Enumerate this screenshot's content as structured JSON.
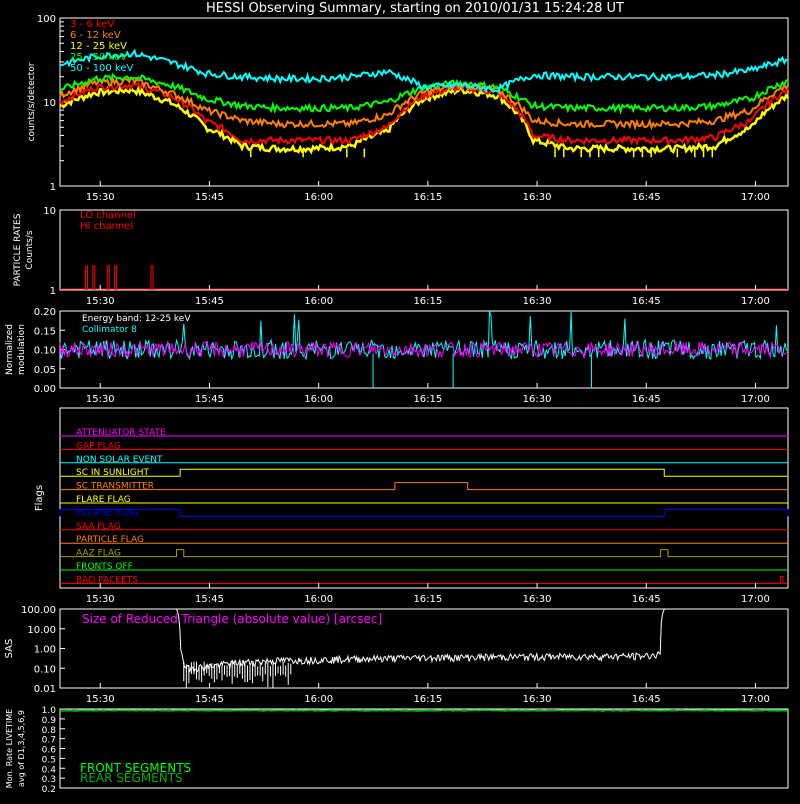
{
  "title": "HESSI Observing Summary, starting on 2010/01/31 15:24:28 UT",
  "colors": {
    "bg": "#000000",
    "axis": "#ffffff",
    "e1": "#ff0000",
    "e2": "#ff7f00",
    "e3": "#ffff00",
    "e4": "#00ff00",
    "e5": "#00ffff",
    "magenta": "#ff00ff",
    "cyan": "#00ffff",
    "green": "#00ff00",
    "darkgreen": "#00b000"
  },
  "time_ticks": [
    "15:30",
    "15:45",
    "16:00",
    "16:15",
    "16:30",
    "16:45",
    "17:00"
  ],
  "chart_data": [
    {
      "type": "line",
      "name": "count-rates",
      "ylabel": "counts/s/detector",
      "ylog": true,
      "ytick_labels": [
        "1",
        "10",
        "100"
      ],
      "ylim": [
        1,
        100
      ],
      "legend_placement": "top-left",
      "x_unit": "minutes since 15:24:28 UT",
      "series": [
        {
          "name": "3 - 6 keV",
          "color": "#ff0000",
          "x": [
            0,
            5,
            10,
            15,
            20,
            25,
            30,
            35,
            40,
            45,
            50,
            55,
            60,
            65,
            70,
            75,
            80,
            85,
            90,
            95,
            100
          ],
          "values": [
            10,
            15,
            16,
            12,
            6,
            3.5,
            3.5,
            3.5,
            3.5,
            5,
            12,
            15,
            13,
            4,
            3.5,
            3.5,
            3.5,
            3.5,
            3.8,
            6,
            14
          ]
        },
        {
          "name": "6 - 12 keV",
          "color": "#ff7f00",
          "x": [
            0,
            5,
            10,
            15,
            20,
            25,
            30,
            35,
            40,
            45,
            50,
            55,
            60,
            65,
            70,
            75,
            80,
            85,
            90,
            95,
            100
          ],
          "values": [
            12,
            17,
            18,
            13,
            8,
            6,
            5.5,
            5.5,
            5.5,
            7,
            13,
            16,
            14,
            6,
            5.5,
            5.5,
            5.5,
            5.5,
            6,
            8,
            16
          ]
        },
        {
          "name": "12 - 25 keV",
          "color": "#ffff00",
          "x": [
            0,
            5,
            10,
            15,
            20,
            25,
            30,
            35,
            40,
            45,
            50,
            55,
            60,
            65,
            70,
            75,
            80,
            85,
            90,
            95,
            100
          ],
          "values": [
            9,
            13,
            14,
            10,
            5,
            3,
            2.8,
            2.8,
            3,
            4.5,
            11,
            14,
            12,
            3.5,
            2.8,
            2.8,
            2.8,
            2.8,
            3,
            5,
            12
          ]
        },
        {
          "name": "25 - 50 keV",
          "color": "#00ff00",
          "x": [
            0,
            5,
            10,
            15,
            20,
            25,
            30,
            35,
            40,
            45,
            50,
            55,
            60,
            65,
            70,
            75,
            80,
            85,
            90,
            95,
            100
          ],
          "values": [
            14,
            19,
            20,
            16,
            11,
            9,
            8.5,
            8.5,
            8.5,
            10,
            15,
            17,
            15,
            9,
            8.5,
            8.5,
            8.5,
            8.5,
            9,
            11,
            18
          ]
        },
        {
          "name": "50 - 100 keV",
          "color": "#00ffff",
          "x": [
            0,
            5,
            10,
            15,
            20,
            25,
            30,
            35,
            40,
            45,
            50,
            55,
            60,
            65,
            70,
            75,
            80,
            85,
            90,
            95,
            100
          ],
          "values": [
            28,
            35,
            38,
            30,
            22,
            20,
            19,
            19,
            20,
            23,
            15,
            16,
            14,
            21,
            20,
            20,
            20,
            20,
            21,
            24,
            32
          ]
        }
      ]
    },
    {
      "type": "line",
      "name": "particle-rates",
      "ylabel": "PARTICLE RATES",
      "ylabel2": "Counts/s",
      "ylog": true,
      "ytick_labels": [
        "1",
        "10"
      ],
      "ylim": [
        1,
        10
      ],
      "series": [
        {
          "name": "LO channel",
          "color": "#ff0000",
          "x": [
            0,
            100
          ],
          "values": [
            1,
            1
          ]
        },
        {
          "name": "HI channel",
          "color": "#ff0000",
          "spikes_at_minutes": [
            3.5,
            4.5,
            6.5,
            7.5,
            12.5
          ]
        }
      ]
    },
    {
      "type": "line",
      "name": "modulation",
      "ylabel": "Normalized",
      "ylabel2": "modulation",
      "ytick_labels": [
        "0.20",
        "0.15",
        "0.10",
        "0.05",
        "0.00"
      ],
      "ylim": [
        0,
        0.2
      ],
      "annotation": "Energy band: 12-25 keV",
      "series": [
        {
          "name": "Collimator 8",
          "color": "#00ffff",
          "mean": 0.1,
          "dropouts_at_minutes": [
            43,
            54,
            73
          ]
        },
        {
          "name": "",
          "color": "#ff00ff",
          "mean": 0.1
        }
      ]
    },
    {
      "type": "table",
      "name": "flags",
      "ylabel": "Flags",
      "flags": [
        {
          "label": "ATTENUATOR STATE",
          "color": "#ff00ff",
          "high_intervals": []
        },
        {
          "label": "GAP FLAG",
          "color": "#ff0000",
          "high_intervals": []
        },
        {
          "label": "NON SOLAR EVENT",
          "color": "#00ffff",
          "high_intervals": []
        },
        {
          "label": "SC IN SUNLIGHT",
          "color": "#ffff00",
          "high_intervals": [
            [
              16.5,
              83
            ]
          ]
        },
        {
          "label": "SC TRANSMITTER",
          "color": "#ff7f00",
          "high_intervals": [
            [
              46,
              56
            ]
          ]
        },
        {
          "label": "FLARE FLAG",
          "color": "#ffff00",
          "high_intervals": []
        },
        {
          "label": "ECLIPSE FLAG",
          "color": "#0000ff",
          "high_intervals": [
            [
              0,
              16.5
            ],
            [
              83,
              100
            ]
          ]
        },
        {
          "label": "SAA FLAG",
          "color": "#ff0000",
          "high_intervals": []
        },
        {
          "label": "PARTICLE FLAG",
          "color": "#ff7f00",
          "high_intervals": []
        },
        {
          "label": "AAZ FLAG",
          "color": "#a0a000",
          "high_intervals": [
            [
              16,
              17
            ],
            [
              82.5,
              83.5
            ]
          ]
        },
        {
          "label": "FRONTS OFF",
          "color": "#00ff00",
          "high_intervals": []
        },
        {
          "label": "BAD PACKETS",
          "color": "#ff0000",
          "high_intervals": [
            [
              99,
              99.3
            ]
          ]
        }
      ]
    },
    {
      "type": "line",
      "name": "sas",
      "ylabel": "SAS",
      "ylog": true,
      "ytick_labels": [
        "100.00",
        "10.00",
        "1.00",
        "0.10",
        "0.01"
      ],
      "ylim": [
        0.01,
        100
      ],
      "annotation": "Size of Reduced Triangle (absolute value) [arcsec]",
      "series": [
        {
          "name": "",
          "color": "#ffffff",
          "x": [
            16,
            16.5,
            17,
            20,
            25,
            30,
            40,
            50,
            60,
            70,
            80,
            82.5,
            83,
            83.5
          ],
          "values": [
            100,
            1,
            0.1,
            0.12,
            0.2,
            0.25,
            0.3,
            0.35,
            0.38,
            0.4,
            0.42,
            0.5,
            100,
            100
          ]
        }
      ]
    },
    {
      "type": "line",
      "name": "livetime",
      "ylabel": "Mon. Rate LIVETIME",
      "ylabel2": "avg of D1,3,4,5,6,9",
      "ytick_labels": [
        "1.0",
        "0.9",
        "0.8",
        "0.7",
        "0.6",
        "0.5",
        "0.4",
        "0.3",
        "0.2"
      ],
      "ylim": [
        0.2,
        1.0
      ],
      "series": [
        {
          "name": "FRONT SEGMENTS",
          "color": "#00ff00",
          "mean": 0.99
        },
        {
          "name": "REAR SEGMENTS",
          "color": "#00b000",
          "mean": 0.99
        }
      ]
    }
  ]
}
